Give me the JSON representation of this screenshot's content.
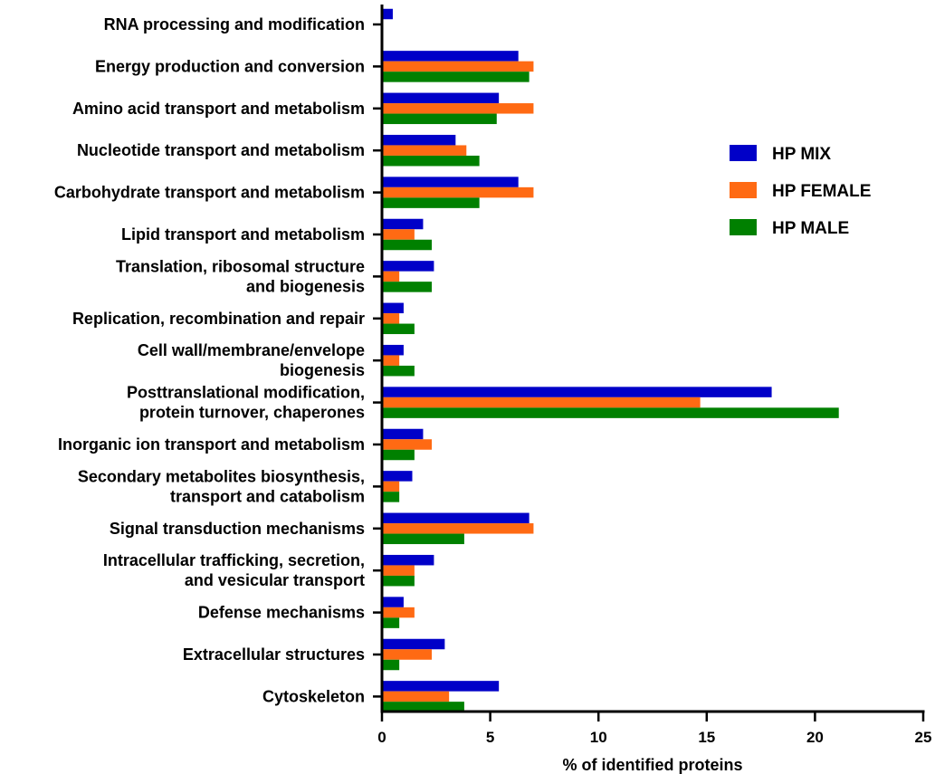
{
  "chart_data": {
    "type": "bar",
    "orientation": "horizontal",
    "categories": [
      [
        "RNA processing and modification"
      ],
      [
        "Energy production and conversion"
      ],
      [
        "Amino acid transport and metabolism"
      ],
      [
        "Nucleotide transport and metabolism"
      ],
      [
        "Carbohydrate transport and metabolism"
      ],
      [
        "Lipid transport and metabolism"
      ],
      [
        "Translation, ribosomal structure",
        "and biogenesis"
      ],
      [
        "Replication, recombination and repair"
      ],
      [
        "Cell wall/membrane/envelope",
        "biogenesis"
      ],
      [
        "Posttranslational modification,",
        "protein turnover, chaperones"
      ],
      [
        "Inorganic ion transport and metabolism"
      ],
      [
        "Secondary metabolites biosynthesis,",
        "transport and catabolism"
      ],
      [
        "Signal transduction mechanisms"
      ],
      [
        "Intracellular trafficking, secretion,",
        "and vesicular transport"
      ],
      [
        "Defense mechanisms"
      ],
      [
        "Extracellular structures"
      ],
      [
        "Cytoskeleton"
      ]
    ],
    "series": [
      {
        "name": "HP MIX",
        "color": "#0000c8",
        "values": [
          0.5,
          6.3,
          5.4,
          3.4,
          6.3,
          1.9,
          2.4,
          1.0,
          1.0,
          18.0,
          1.9,
          1.4,
          6.8,
          2.4,
          1.0,
          2.9,
          5.4
        ]
      },
      {
        "name": "HP FEMALE",
        "color": "#ff6a13",
        "values": [
          0,
          7.0,
          7.0,
          3.9,
          7.0,
          1.5,
          0.8,
          0.8,
          0.8,
          14.7,
          2.3,
          0.8,
          7.0,
          1.5,
          1.5,
          2.3,
          3.1
        ]
      },
      {
        "name": "HP MALE",
        "color": "#008000",
        "values": [
          0,
          6.8,
          5.3,
          4.5,
          4.5,
          2.3,
          2.3,
          1.5,
          1.5,
          21.1,
          1.5,
          0.8,
          3.8,
          1.5,
          0.8,
          0.8,
          3.8
        ]
      }
    ],
    "xlabel": "% of identified proteins",
    "xlim": [
      0,
      25
    ],
    "xticks": [
      0,
      5,
      10,
      15,
      20,
      25
    ],
    "legend_position": "right",
    "grid": false
  }
}
